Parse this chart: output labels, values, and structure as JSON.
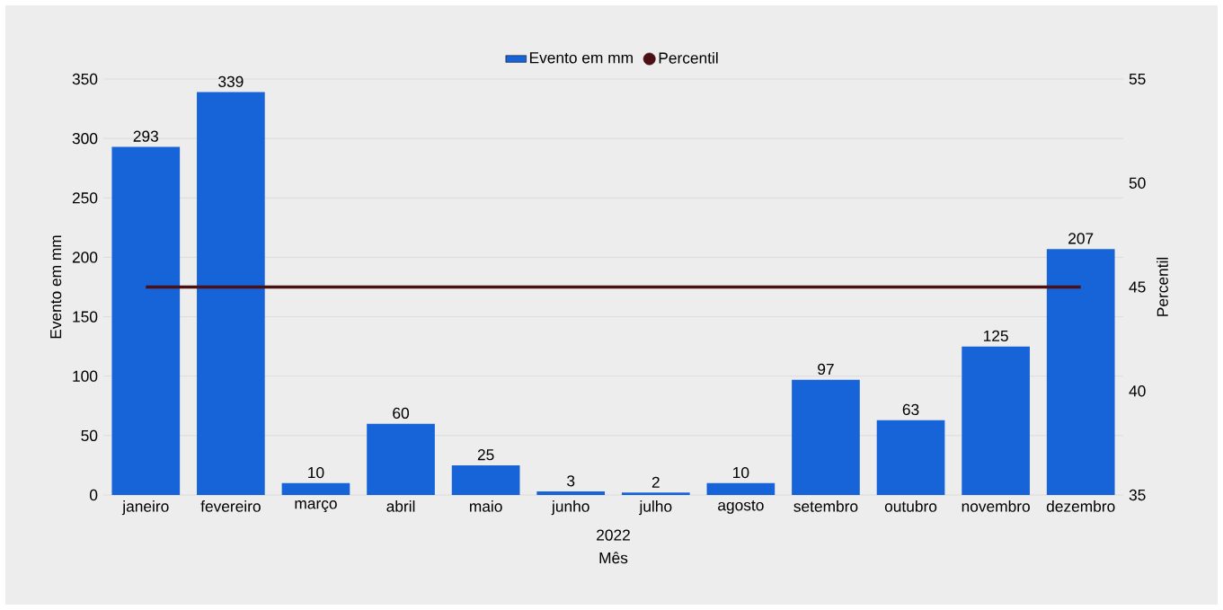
{
  "chart_data": {
    "type": "bar",
    "categories": [
      "janeiro",
      "fevereiro",
      "março",
      "abril",
      "maio",
      "junho",
      "julho",
      "agosto",
      "setembro",
      "outubro",
      "novembro",
      "dezembro"
    ],
    "series": [
      {
        "name": "Evento em mm",
        "color": "#1763d8",
        "values": [
          293,
          339,
          10,
          60,
          25,
          3,
          2,
          10,
          97,
          63,
          125,
          207
        ],
        "value_labels": [
          "293",
          "339",
          "10",
          "60",
          "25",
          "3",
          "2",
          "10",
          "97",
          "63",
          "125",
          "207"
        ]
      },
      {
        "name": "Percentil",
        "type": "line",
        "axis": "y2",
        "color": "#4a1014",
        "values": [
          45,
          45,
          45,
          45,
          45,
          45,
          45,
          45,
          45,
          45,
          45,
          45
        ]
      }
    ],
    "xlabel": "Mês",
    "ylabel": "Evento em mm",
    "y2label": "Percentil",
    "annotations": [
      "2022"
    ],
    "ylim": [
      0,
      350
    ],
    "yticks": [
      0,
      50,
      100,
      150,
      200,
      250,
      300,
      350
    ],
    "y2lim": [
      35,
      55
    ],
    "y2ticks": [
      35,
      40,
      45,
      50,
      55
    ],
    "grid": "y",
    "legend": "top"
  }
}
